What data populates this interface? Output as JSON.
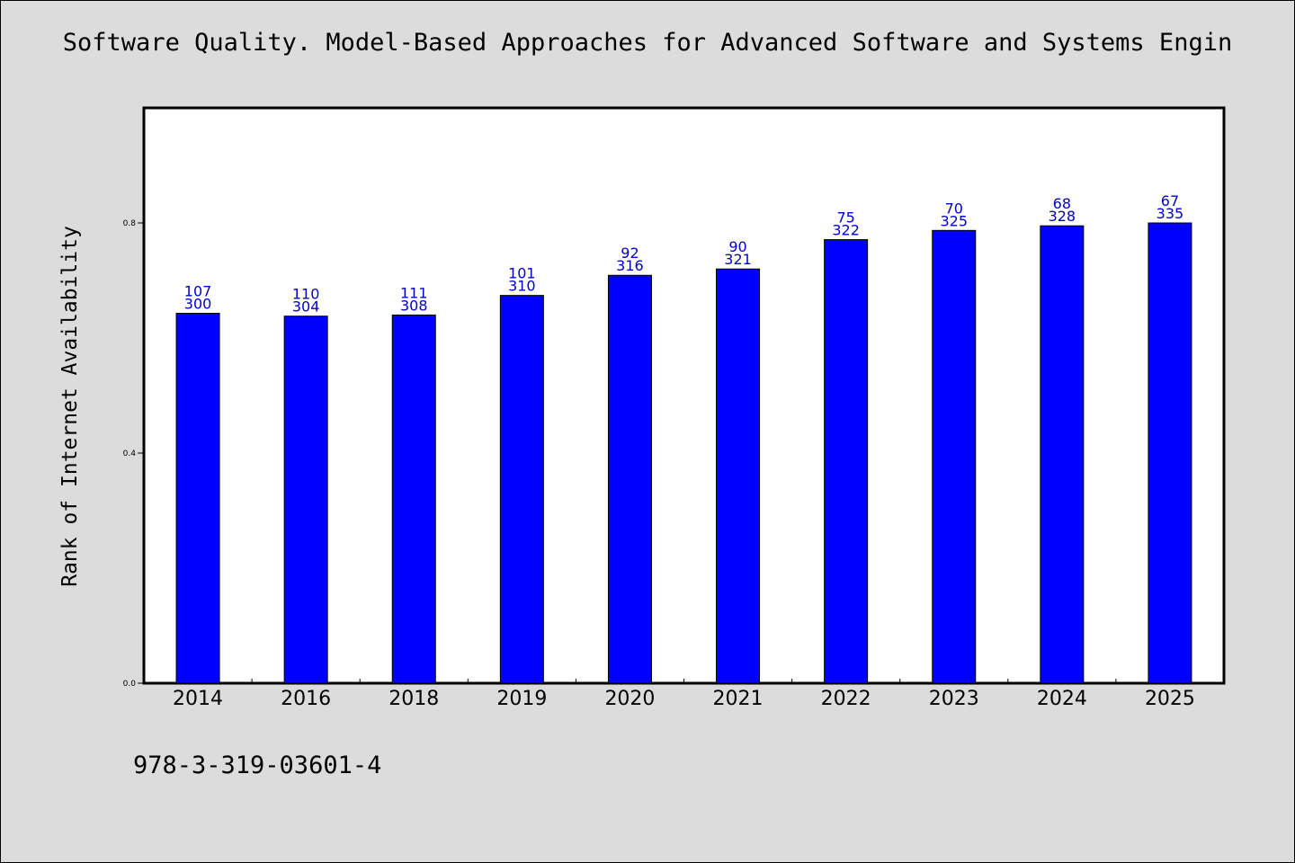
{
  "chart_data": {
    "type": "bar",
    "title": "Software Quality. Model-Based Approaches for Advanced Software and Systems Engin",
    "xlabel": "",
    "ylabel": "Rank of Internet Availability",
    "categories": [
      "2014",
      "2016",
      "2018",
      "2019",
      "2020",
      "2021",
      "2022",
      "2023",
      "2024",
      "2025"
    ],
    "values": [
      0.643,
      0.638,
      0.64,
      0.674,
      0.709,
      0.72,
      0.771,
      0.787,
      0.795,
      0.8
    ],
    "label_top": [
      "107",
      "110",
      "111",
      "101",
      "92",
      "90",
      "75",
      "70",
      "68",
      "67"
    ],
    "label_bottom": [
      "300",
      "304",
      "308",
      "310",
      "316",
      "321",
      "322",
      "325",
      "328",
      "335"
    ],
    "yticks": [
      "0.0",
      "0.4",
      "0.8"
    ],
    "ytick_values": [
      0.0,
      0.4,
      0.8
    ],
    "ylim": [
      0,
      1.0
    ],
    "grid": false,
    "legend": "none",
    "bar_color": "#0000ff",
    "label_color": "#0000cc"
  },
  "footer": {
    "isbn": "978-3-319-03601-4"
  }
}
